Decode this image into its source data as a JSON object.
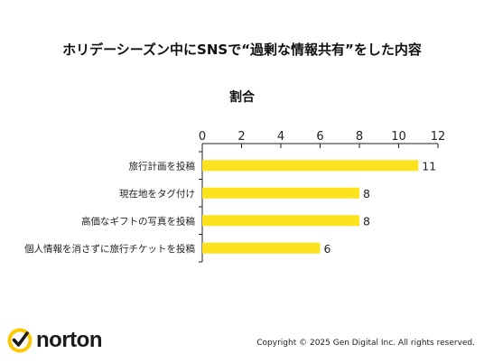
{
  "header": {
    "title": "ホリデーシーズン中にSNSで“過剰な情報共有”をした内容",
    "subtitle": "割合"
  },
  "chart_data": {
    "type": "bar",
    "orientation": "horizontal",
    "categories": [
      "旅行計画を投稿",
      "現在地をタグ付け",
      "高価なギフトの写真を投稿",
      "個人情報を消さずに旅行チケットを投稿"
    ],
    "values": [
      11,
      8,
      8,
      6
    ],
    "xlim": [
      0,
      12
    ],
    "ticks": [
      0,
      2,
      4,
      6,
      8,
      10,
      12
    ],
    "title": "割合",
    "bar_color": "#fde21e",
    "grid": false
  },
  "footer": {
    "brand": "norton",
    "copyright": "Copyright © 2025 Gen Digital Inc. All rights reserved."
  },
  "colors": {
    "bar": "#fde21e",
    "axis": "#222222",
    "brand_yellow": "#fec800"
  },
  "icons": {
    "logo": "norton-check-icon"
  }
}
